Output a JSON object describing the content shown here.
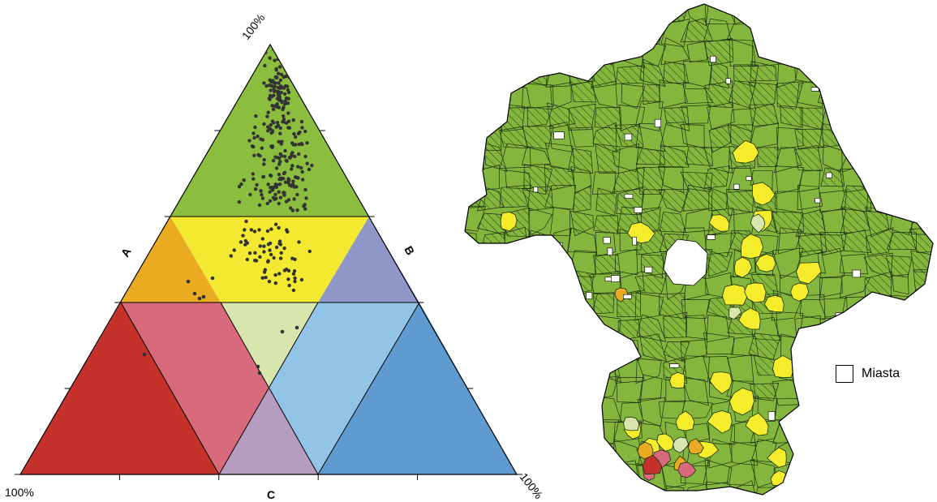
{
  "ternary": {
    "axis_label_a": "A",
    "axis_label_b": "B",
    "axis_label_c": "C",
    "label_top": "100%",
    "label_bottom_left": "100%",
    "label_bottom_right": "100%",
    "colors": {
      "top": "#8bbd3e",
      "yellow": "#f2e930",
      "orange": "#eaaa22",
      "purple": "#8f96c8",
      "light_green": "#d8e6ae",
      "red": "#c4322b",
      "pink": "#d86a7c",
      "light_blue": "#92c4e8",
      "blue": "#5f9bd0",
      "mauve": "#b69cbf"
    }
  },
  "map": {
    "legend_label": "Miasta",
    "colors": {
      "base": "#84b63e",
      "yellow": "#f5ec2b",
      "light_green": "#d8e6ae",
      "orange": "#eaaa22",
      "red": "#c4322b",
      "pink": "#d86a7c",
      "city": "#ffffff"
    }
  }
}
